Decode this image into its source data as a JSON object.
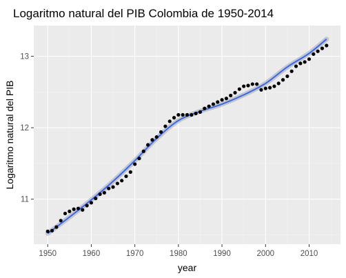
{
  "chart_data": {
    "type": "scatter",
    "title": "Logaritmo natural del PIB Colombia de 1950-2014",
    "xlabel": "year",
    "ylabel": "Logaritmo natural del PIB",
    "xlim": [
      1946.8,
      2017.2
    ],
    "ylim": [
      10.37,
      13.43
    ],
    "x_ticks": [
      1950,
      1960,
      1970,
      1980,
      1990,
      2000,
      2010
    ],
    "y_ticks": [
      11,
      12,
      13
    ],
    "grid": true,
    "legend": "none",
    "series": [
      {
        "points": [
          [
            1950,
            10.55
          ],
          [
            1951,
            10.56
          ],
          [
            1952,
            10.61
          ],
          [
            1953,
            10.7
          ],
          [
            1954,
            10.8
          ],
          [
            1955,
            10.83
          ],
          [
            1956,
            10.86
          ],
          [
            1957,
            10.87
          ],
          [
            1958,
            10.85
          ],
          [
            1959,
            10.91
          ],
          [
            1960,
            10.95
          ],
          [
            1961,
            11.01
          ],
          [
            1962,
            11.07
          ],
          [
            1963,
            11.09
          ],
          [
            1964,
            11.15
          ],
          [
            1965,
            11.17
          ],
          [
            1966,
            11.22
          ],
          [
            1967,
            11.26
          ],
          [
            1968,
            11.32
          ],
          [
            1969,
            11.38
          ],
          [
            1970,
            11.49
          ],
          [
            1971,
            11.57
          ],
          [
            1972,
            11.67
          ],
          [
            1973,
            11.76
          ],
          [
            1974,
            11.83
          ],
          [
            1975,
            11.87
          ],
          [
            1976,
            11.94
          ],
          [
            1977,
            12.02
          ],
          [
            1978,
            12.09
          ],
          [
            1979,
            12.14
          ],
          [
            1980,
            12.18
          ],
          [
            1981,
            12.18
          ],
          [
            1982,
            12.18
          ],
          [
            1983,
            12.18
          ],
          [
            1984,
            12.2
          ],
          [
            1985,
            12.22
          ],
          [
            1986,
            12.27
          ],
          [
            1987,
            12.3
          ],
          [
            1988,
            12.33
          ],
          [
            1989,
            12.36
          ],
          [
            1990,
            12.39
          ],
          [
            1991,
            12.41
          ],
          [
            1992,
            12.45
          ],
          [
            1993,
            12.49
          ],
          [
            1994,
            12.54
          ],
          [
            1995,
            12.58
          ],
          [
            1996,
            12.59
          ],
          [
            1997,
            12.61
          ],
          [
            1998,
            12.61
          ],
          [
            1999,
            12.53
          ],
          [
            2000,
            12.55
          ],
          [
            2001,
            12.56
          ],
          [
            2002,
            12.58
          ],
          [
            2003,
            12.62
          ],
          [
            2004,
            12.67
          ],
          [
            2005,
            12.72
          ],
          [
            2006,
            12.79
          ],
          [
            2007,
            12.86
          ],
          [
            2008,
            12.9
          ],
          [
            2009,
            12.92
          ],
          [
            2010,
            12.96
          ],
          [
            2011,
            13.03
          ],
          [
            2012,
            13.07
          ],
          [
            2013,
            13.11
          ],
          [
            2014,
            13.15
          ]
        ]
      }
    ],
    "smooth_line": [
      [
        1950,
        10.52
      ],
      [
        1955,
        10.75
      ],
      [
        1960,
        10.99
      ],
      [
        1965,
        11.25
      ],
      [
        1970,
        11.54
      ],
      [
        1975,
        11.85
      ],
      [
        1980,
        12.1
      ],
      [
        1985,
        12.23
      ],
      [
        1990,
        12.33
      ],
      [
        1995,
        12.46
      ],
      [
        2000,
        12.62
      ],
      [
        2005,
        12.85
      ],
      [
        2010,
        13.04
      ],
      [
        2014,
        13.24
      ]
    ],
    "colors": {
      "panel_background": "#ebebeb",
      "grid_major": "#ffffff",
      "grid_minor": "#f3f3f3",
      "points": "#000000",
      "smooth_line": "#3366ff",
      "confidence_band": "#999999"
    }
  }
}
